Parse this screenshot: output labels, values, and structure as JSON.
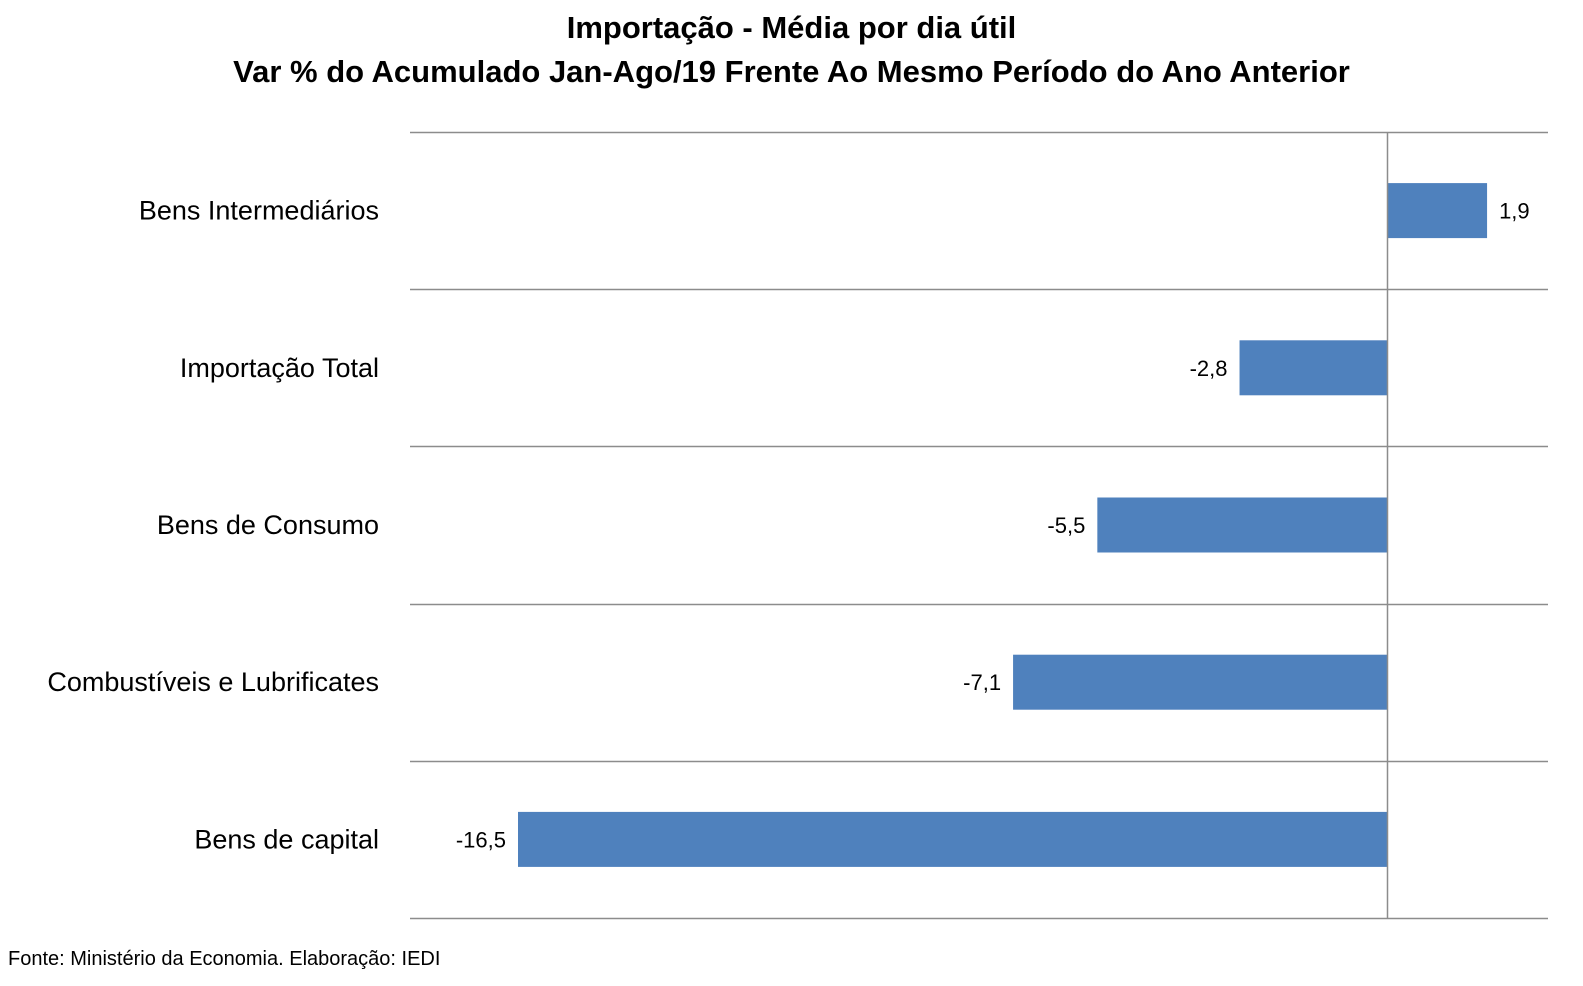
{
  "title_line1": "Importação - Média por dia útil",
  "title_line2": "Var % do Acumulado Jan-Ago/19 Frente Ao Mesmo Período do Ano Anterior",
  "source": "Fonte: Ministério da Economia. Elaboração: IEDI",
  "chart_data": {
    "type": "bar",
    "orientation": "horizontal",
    "categories": [
      "Bens Intermediários",
      "Importação Total",
      "Bens de Consumo",
      "Combustíveis e Lubrificates",
      "Bens de capital"
    ],
    "values": [
      1.9,
      -2.8,
      -5.5,
      -7.1,
      -16.5
    ],
    "data_labels": [
      "1,9",
      "-2,8",
      "-5,5",
      "-7,1",
      "-16,5"
    ],
    "bar_color": "#4f81bd",
    "grid": true
  }
}
